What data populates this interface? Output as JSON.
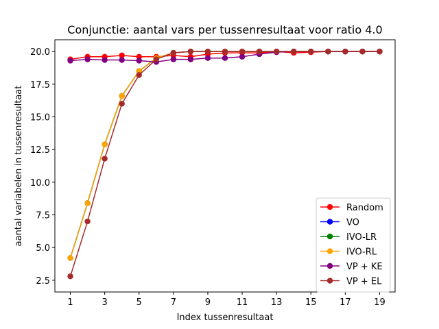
{
  "chart_data": {
    "type": "line",
    "title": "Conjunctie: aantal vars per tussenresultaat voor ratio 4.0",
    "xlabel": "Index tussenresultaat",
    "ylabel": "aantal variabelen in tussenresultaat",
    "xlim": [
      0.1,
      19.9
    ],
    "ylim": [
      1.6,
      20.9
    ],
    "xticks": [
      1,
      3,
      5,
      7,
      9,
      11,
      13,
      15,
      17,
      19
    ],
    "yticks": [
      2.5,
      5.0,
      7.5,
      10.0,
      12.5,
      15.0,
      17.5,
      20.0
    ],
    "ytick_labels": [
      "2.5",
      "5.0",
      "7.5",
      "10.0",
      "12.5",
      "15.0",
      "17.5",
      "20.0"
    ],
    "legend_position": "lower-right",
    "grid": false,
    "x": [
      1,
      2,
      3,
      4,
      5,
      6,
      7,
      8,
      9,
      10,
      11,
      12,
      13,
      14,
      15,
      16,
      17,
      18,
      19
    ],
    "series": [
      {
        "name": "Random",
        "color": "#ff0000",
        "values": [
          19.4,
          19.6,
          19.6,
          19.7,
          19.6,
          19.6,
          19.7,
          19.6,
          19.8,
          19.9,
          19.9,
          19.9,
          20.0,
          19.9,
          19.95,
          20.0,
          20.0,
          20.0,
          20.0
        ]
      },
      {
        "name": "VO",
        "color": "#0000ff",
        "values": [
          4.2,
          8.4,
          12.9,
          16.6,
          18.5,
          19.5,
          19.9,
          20.0,
          20.0,
          20.0,
          20.0,
          20.0,
          20.0,
          20.0,
          20.0,
          20.0,
          20.0,
          20.0,
          20.0
        ]
      },
      {
        "name": "IVO-LR",
        "color": "#008000",
        "values": [
          4.2,
          8.4,
          12.9,
          16.6,
          18.5,
          19.5,
          19.9,
          20.0,
          20.0,
          20.0,
          20.0,
          20.0,
          20.0,
          20.0,
          20.0,
          20.0,
          20.0,
          20.0,
          20.0
        ]
      },
      {
        "name": "IVO-RL",
        "color": "#ffa500",
        "values": [
          4.2,
          8.4,
          12.9,
          16.6,
          18.5,
          19.5,
          19.9,
          20.0,
          20.0,
          20.0,
          20.0,
          20.0,
          20.0,
          20.0,
          20.0,
          20.0,
          20.0,
          20.0,
          20.0
        ]
      },
      {
        "name": "VP + KE",
        "color": "#800080",
        "values": [
          19.3,
          19.4,
          19.35,
          19.35,
          19.3,
          19.2,
          19.4,
          19.4,
          19.5,
          19.5,
          19.6,
          19.8,
          19.95,
          20.0,
          20.0,
          20.0,
          20.0,
          20.0,
          20.0
        ]
      },
      {
        "name": "VP + EL",
        "color": "#a52a2a",
        "values": [
          2.8,
          7.0,
          11.8,
          16.0,
          18.2,
          19.4,
          19.9,
          20.0,
          20.0,
          20.0,
          20.0,
          20.0,
          20.0,
          20.0,
          20.0,
          20.0,
          20.0,
          20.0,
          20.0
        ]
      }
    ]
  }
}
